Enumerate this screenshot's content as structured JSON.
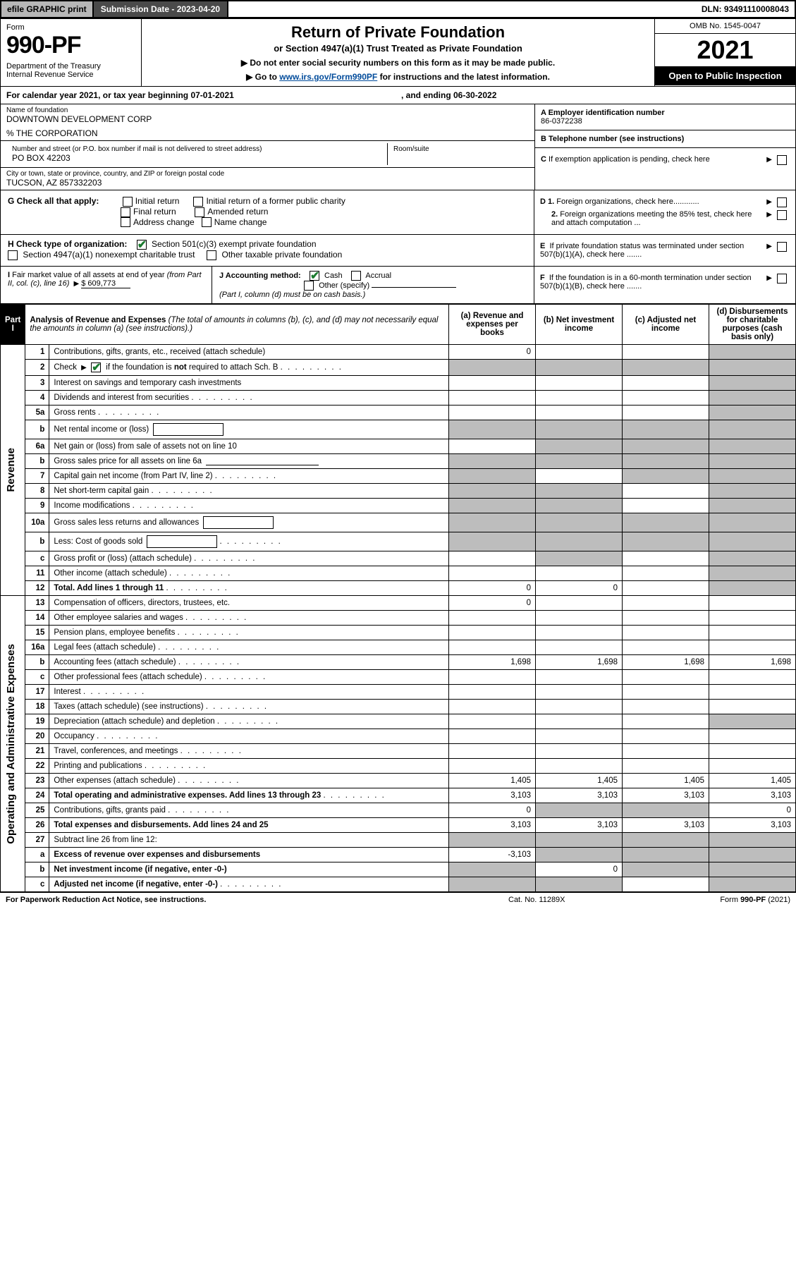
{
  "colors": {
    "topbar_grey": "#b7b7b7",
    "topbar_dark": "#4a4a4a",
    "black": "#000000",
    "white": "#ffffff",
    "link": "#004b9b",
    "check_green": "#1a7a2e",
    "shade": "#bdbdbd"
  },
  "topbar": {
    "efile": "efile GRAPHIC print",
    "subdate": "Submission Date - 2023-04-20",
    "dln": "DLN: 93491110008043"
  },
  "header": {
    "form_label": "Form",
    "form_number": "990-PF",
    "dept": "Department of the Treasury\nInternal Revenue Service",
    "title": "Return of Private Foundation",
    "subtitle": "or Section 4947(a)(1) Trust Treated as Private Foundation",
    "instr1": "▶ Do not enter social security numbers on this form as it may be made public.",
    "instr2_pre": "▶ Go to ",
    "instr2_link": "www.irs.gov/Form990PF",
    "instr2_post": " for instructions and the latest information.",
    "omb": "OMB No. 1545-0047",
    "year": "2021",
    "open": "Open to Public Inspection"
  },
  "calendar": {
    "label": "For calendar year 2021, or tax year beginning 07-01-2021",
    "ending": ", and ending 06-30-2022"
  },
  "entity": {
    "name_label": "Name of foundation",
    "name": "DOWNTOWN DEVELOPMENT CORP",
    "care_of": "% THE CORPORATION",
    "street_label": "Number and street (or P.O. box number if mail is not delivered to street address)",
    "street": "PO BOX 42203",
    "room_label": "Room/suite",
    "city_label": "City or town, state or province, country, and ZIP or foreign postal code",
    "city": "TUCSON, AZ  857332203",
    "ein_label": "A Employer identification number",
    "ein": "86-0372238",
    "phone_label": "B Telephone number (see instructions)",
    "c_label": "C If exemption application is pending, check here"
  },
  "checks": {
    "g_label": "G Check all that apply:",
    "g_items": [
      "Initial return",
      "Initial return of a former public charity",
      "Final return",
      "Amended return",
      "Address change",
      "Name change"
    ],
    "d1": "D 1. Foreign organizations, check here............",
    "d2": "2. Foreign organizations meeting the 85% test, check here and attach computation ...",
    "e": "E  If private foundation status was terminated under section 507(b)(1)(A), check here .......",
    "h_label": "H Check type of organization:",
    "h_items": [
      "Section 501(c)(3) exempt private foundation",
      "Section 4947(a)(1) nonexempt charitable trust",
      "Other taxable private foundation"
    ],
    "h_checked_index": 0,
    "i_label": "I Fair market value of all assets at end of year (from Part II, col. (c), line 16)",
    "i_value": "$  609,773",
    "j_label": "J Accounting method:",
    "j_items": [
      "Cash",
      "Accrual",
      "Other (specify)"
    ],
    "j_checked_index": 0,
    "j_note": "(Part I, column (d) must be on cash basis.)",
    "f": "F  If the foundation is in a 60-month termination under section 507(b)(1)(B), check here ......."
  },
  "part1": {
    "tab": "Part I",
    "title_bold": "Analysis of Revenue and Expenses",
    "title_rest": " (The total of amounts in columns (b), (c), and (d) may not necessarily equal the amounts in column (a) (see instructions).)",
    "col_headers": {
      "a": "(a)  Revenue and expenses per books",
      "b": "(b)  Net investment income",
      "c": "(c)  Adjusted net income",
      "d": "(d)  Disbursements for charitable purposes (cash basis only)"
    },
    "section_rev": "Revenue",
    "section_exp": "Operating and Administrative Expenses",
    "rows": [
      {
        "num": "1",
        "desc": "Contributions, gifts, grants, etc., received (attach schedule)",
        "a": "0",
        "b": "",
        "c": "",
        "d": "shade"
      },
      {
        "num": "2",
        "desc": "Check ▶ ☑ if the foundation is not required to attach Sch. B",
        "dots": true,
        "a": "shade",
        "b": "shade",
        "c": "shade",
        "d": "shade",
        "checkbox": true
      },
      {
        "num": "3",
        "desc": "Interest on savings and temporary cash investments",
        "a": "",
        "b": "",
        "c": "",
        "d": "shade"
      },
      {
        "num": "4",
        "desc": "Dividends and interest from securities",
        "dots": true,
        "a": "",
        "b": "",
        "c": "",
        "d": "shade"
      },
      {
        "num": "5a",
        "desc": "Gross rents",
        "dots": true,
        "a": "",
        "b": "",
        "c": "",
        "d": "shade"
      },
      {
        "num": "b",
        "desc": "Net rental income or (loss)",
        "inline_box": true,
        "a": "shade",
        "b": "shade",
        "c": "shade",
        "d": "shade"
      },
      {
        "num": "6a",
        "desc": "Net gain or (loss) from sale of assets not on line 10",
        "a": "",
        "b": "shade",
        "c": "shade",
        "d": "shade"
      },
      {
        "num": "b",
        "desc": "Gross sales price for all assets on line 6a",
        "inline_line": true,
        "a": "shade",
        "b": "shade",
        "c": "shade",
        "d": "shade"
      },
      {
        "num": "7",
        "desc": "Capital gain net income (from Part IV, line 2)",
        "dots": true,
        "a": "shade",
        "b": "",
        "c": "shade",
        "d": "shade"
      },
      {
        "num": "8",
        "desc": "Net short-term capital gain",
        "dots": true,
        "a": "shade",
        "b": "shade",
        "c": "",
        "d": "shade"
      },
      {
        "num": "9",
        "desc": "Income modifications",
        "dots": true,
        "a": "shade",
        "b": "shade",
        "c": "",
        "d": "shade"
      },
      {
        "num": "10a",
        "desc": "Gross sales less returns and allowances",
        "inline_box": true,
        "a": "shade",
        "b": "shade",
        "c": "shade",
        "d": "shade"
      },
      {
        "num": "b",
        "desc": "Less: Cost of goods sold",
        "dots": true,
        "inline_box": true,
        "a": "shade",
        "b": "shade",
        "c": "shade",
        "d": "shade"
      },
      {
        "num": "c",
        "desc": "Gross profit or (loss) (attach schedule)",
        "dots": true,
        "a": "",
        "b": "shade",
        "c": "",
        "d": "shade"
      },
      {
        "num": "11",
        "desc": "Other income (attach schedule)",
        "dots": true,
        "a": "",
        "b": "",
        "c": "",
        "d": "shade"
      },
      {
        "num": "12",
        "desc": "Total. Add lines 1 through 11",
        "dots": true,
        "bold": true,
        "a": "0",
        "b": "0",
        "c": "",
        "d": "shade"
      },
      {
        "num": "13",
        "desc": "Compensation of officers, directors, trustees, etc.",
        "a": "0",
        "b": "",
        "c": "",
        "d": ""
      },
      {
        "num": "14",
        "desc": "Other employee salaries and wages",
        "dots": true,
        "a": "",
        "b": "",
        "c": "",
        "d": ""
      },
      {
        "num": "15",
        "desc": "Pension plans, employee benefits",
        "dots": true,
        "a": "",
        "b": "",
        "c": "",
        "d": ""
      },
      {
        "num": "16a",
        "desc": "Legal fees (attach schedule)",
        "dots": true,
        "a": "",
        "b": "",
        "c": "",
        "d": ""
      },
      {
        "num": "b",
        "desc": "Accounting fees (attach schedule)",
        "dots": true,
        "a": "1,698",
        "b": "1,698",
        "c": "1,698",
        "d": "1,698"
      },
      {
        "num": "c",
        "desc": "Other professional fees (attach schedule)",
        "dots": true,
        "a": "",
        "b": "",
        "c": "",
        "d": ""
      },
      {
        "num": "17",
        "desc": "Interest",
        "dots": true,
        "a": "",
        "b": "",
        "c": "",
        "d": ""
      },
      {
        "num": "18",
        "desc": "Taxes (attach schedule) (see instructions)",
        "dots": true,
        "a": "",
        "b": "",
        "c": "",
        "d": ""
      },
      {
        "num": "19",
        "desc": "Depreciation (attach schedule) and depletion",
        "dots": true,
        "a": "",
        "b": "",
        "c": "",
        "d": "shade"
      },
      {
        "num": "20",
        "desc": "Occupancy",
        "dots": true,
        "a": "",
        "b": "",
        "c": "",
        "d": ""
      },
      {
        "num": "21",
        "desc": "Travel, conferences, and meetings",
        "dots": true,
        "a": "",
        "b": "",
        "c": "",
        "d": ""
      },
      {
        "num": "22",
        "desc": "Printing and publications",
        "dots": true,
        "a": "",
        "b": "",
        "c": "",
        "d": ""
      },
      {
        "num": "23",
        "desc": "Other expenses (attach schedule)",
        "dots": true,
        "a": "1,405",
        "b": "1,405",
        "c": "1,405",
        "d": "1,405"
      },
      {
        "num": "24",
        "desc": "Total operating and administrative expenses. Add lines 13 through 23",
        "dots": true,
        "bold": true,
        "a": "3,103",
        "b": "3,103",
        "c": "3,103",
        "d": "3,103"
      },
      {
        "num": "25",
        "desc": "Contributions, gifts, grants paid",
        "dots": true,
        "a": "0",
        "b": "shade",
        "c": "shade",
        "d": "0"
      },
      {
        "num": "26",
        "desc": "Total expenses and disbursements. Add lines 24 and 25",
        "bold": true,
        "a": "3,103",
        "b": "3,103",
        "c": "3,103",
        "d": "3,103"
      },
      {
        "num": "27",
        "desc": "Subtract line 26 from line 12:",
        "a": "shade",
        "b": "shade",
        "c": "shade",
        "d": "shade"
      },
      {
        "num": "a",
        "desc": "Excess of revenue over expenses and disbursements",
        "bold": true,
        "a": "-3,103",
        "b": "shade",
        "c": "shade",
        "d": "shade"
      },
      {
        "num": "b",
        "desc": "Net investment income (if negative, enter -0-)",
        "bold": true,
        "a": "shade",
        "b": "0",
        "c": "shade",
        "d": "shade"
      },
      {
        "num": "c",
        "desc": "Adjusted net income (if negative, enter -0-)",
        "dots": true,
        "bold": true,
        "a": "shade",
        "b": "shade",
        "c": "",
        "d": "shade"
      }
    ]
  },
  "footer": {
    "left": "For Paperwork Reduction Act Notice, see instructions.",
    "mid": "Cat. No. 11289X",
    "right": "Form 990-PF (2021)"
  }
}
